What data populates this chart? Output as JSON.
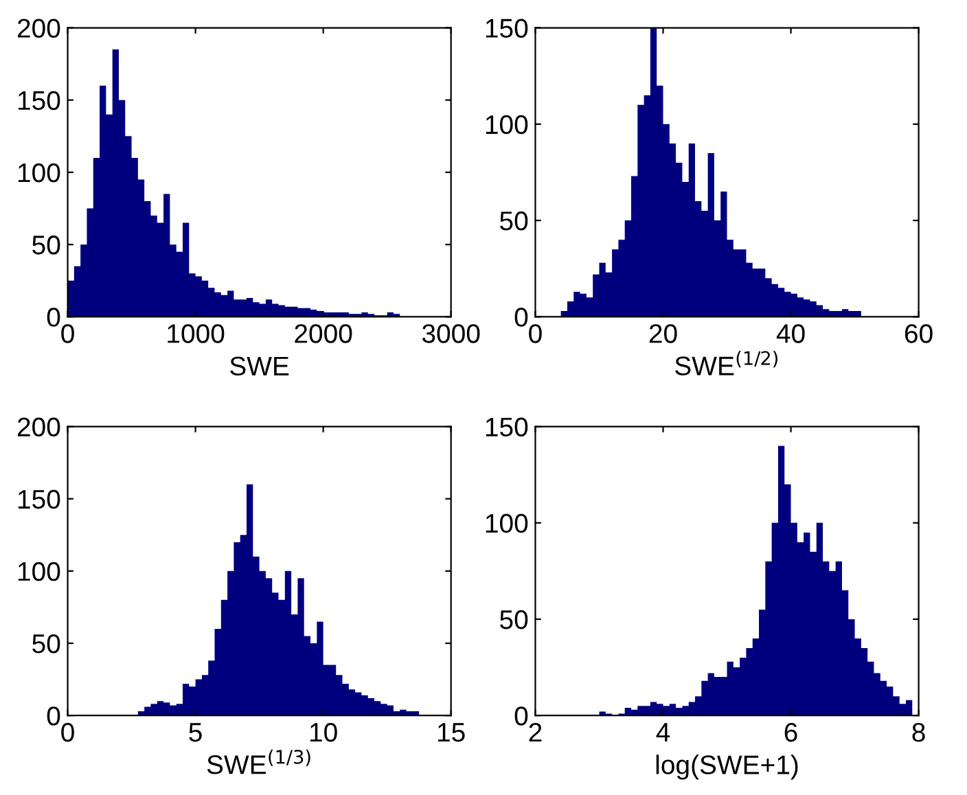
{
  "chart_data": [
    {
      "type": "histogram",
      "xlabel": "SWE",
      "color": "#00007f",
      "xlim": [
        0,
        3000
      ],
      "xticks": [
        0,
        1000,
        2000,
        3000
      ],
      "ylim": [
        0,
        200
      ],
      "yticks": [
        0,
        50,
        100,
        150,
        200
      ],
      "bins": [
        0,
        50,
        100,
        150,
        200,
        250,
        300,
        350,
        400,
        450,
        500,
        550,
        600,
        650,
        700,
        750,
        800,
        850,
        900,
        950,
        1000,
        1050,
        1100,
        1150,
        1200,
        1250,
        1300,
        1350,
        1400,
        1450,
        1500,
        1550,
        1600,
        1650,
        1700,
        1750,
        1800,
        1850,
        1900,
        1950,
        2000,
        2050,
        2100,
        2150,
        2200,
        2250,
        2300,
        2350,
        2400,
        2450,
        2500,
        2550,
        2600
      ],
      "values": [
        25,
        35,
        50,
        75,
        110,
        160,
        140,
        185,
        150,
        125,
        110,
        95,
        80,
        70,
        65,
        85,
        50,
        45,
        65,
        30,
        28,
        25,
        20,
        17,
        15,
        18,
        12,
        12,
        13,
        10,
        9,
        12,
        9,
        8,
        7,
        7,
        6,
        6,
        5,
        4,
        3,
        3,
        3,
        3,
        2,
        2,
        3,
        2,
        1,
        1,
        3,
        2
      ]
    },
    {
      "type": "histogram",
      "xlabel": "SWE$^{(1/2)}$",
      "color": "#00007f",
      "xlim": [
        0,
        60
      ],
      "xticks": [
        0,
        20,
        40,
        60
      ],
      "ylim": [
        0,
        150
      ],
      "yticks": [
        0,
        50,
        100,
        150
      ],
      "bins": [
        4,
        5,
        6,
        7,
        8,
        9,
        10,
        11,
        12,
        13,
        14,
        15,
        16,
        17,
        18,
        19,
        20,
        21,
        22,
        23,
        24,
        25,
        26,
        27,
        28,
        29,
        30,
        31,
        32,
        33,
        34,
        35,
        36,
        37,
        38,
        39,
        40,
        41,
        42,
        43,
        44,
        45,
        46,
        47,
        48,
        49,
        50,
        51
      ],
      "values": [
        3,
        8,
        13,
        12,
        10,
        22,
        28,
        23,
        35,
        40,
        50,
        73,
        110,
        115,
        150,
        120,
        100,
        90,
        80,
        70,
        90,
        60,
        55,
        85,
        50,
        65,
        40,
        35,
        35,
        28,
        25,
        25,
        20,
        17,
        15,
        13,
        12,
        10,
        9,
        8,
        6,
        4,
        3,
        3,
        4,
        3,
        3
      ]
    },
    {
      "type": "histogram",
      "xlabel": "SWE$^{(1/3)}$",
      "color": "#00007f",
      "xlim": [
        0,
        15
      ],
      "xticks": [
        0,
        5,
        10,
        15
      ],
      "ylim": [
        0,
        200
      ],
      "yticks": [
        0,
        50,
        100,
        150,
        200
      ],
      "bins": [
        2.75,
        3.0,
        3.25,
        3.5,
        3.75,
        4.0,
        4.25,
        4.5,
        4.75,
        5.0,
        5.25,
        5.5,
        5.75,
        6.0,
        6.25,
        6.5,
        6.75,
        7.0,
        7.25,
        7.5,
        7.75,
        8.0,
        8.25,
        8.5,
        8.75,
        9.0,
        9.25,
        9.5,
        9.75,
        10.0,
        10.25,
        10.5,
        10.75,
        11.0,
        11.25,
        11.5,
        11.75,
        12.0,
        12.25,
        12.5,
        12.75,
        13.0,
        13.25,
        13.5,
        13.75
      ],
      "values": [
        3,
        6,
        8,
        10,
        9,
        7,
        8,
        22,
        20,
        25,
        28,
        38,
        60,
        80,
        100,
        120,
        125,
        160,
        110,
        100,
        95,
        85,
        80,
        100,
        70,
        95,
        55,
        50,
        65,
        35,
        35,
        28,
        22,
        18,
        16,
        14,
        12,
        10,
        8,
        7,
        3,
        4,
        3,
        3
      ]
    },
    {
      "type": "histogram",
      "xlabel": "log(SWE+1)",
      "color": "#00007f",
      "xlim": [
        2,
        8
      ],
      "xticks": [
        2,
        4,
        6,
        8
      ],
      "ylim": [
        0,
        150
      ],
      "yticks": [
        0,
        50,
        100,
        150
      ],
      "bins": [
        3.0,
        3.1,
        3.2,
        3.3,
        3.4,
        3.5,
        3.6,
        3.7,
        3.8,
        3.9,
        4.0,
        4.1,
        4.2,
        4.3,
        4.4,
        4.5,
        4.6,
        4.7,
        4.8,
        4.9,
        5.0,
        5.1,
        5.2,
        5.3,
        5.4,
        5.5,
        5.6,
        5.7,
        5.8,
        5.9,
        6.0,
        6.1,
        6.2,
        6.3,
        6.4,
        6.5,
        6.6,
        6.7,
        6.8,
        6.9,
        7.0,
        7.1,
        7.2,
        7.3,
        7.4,
        7.5,
        7.6,
        7.7,
        7.8,
        7.9
      ],
      "values": [
        2,
        1,
        0,
        1,
        4,
        3,
        5,
        5,
        7,
        6,
        5,
        6,
        4,
        5,
        7,
        10,
        18,
        22,
        20,
        20,
        28,
        25,
        30,
        35,
        40,
        55,
        80,
        100,
        140,
        120,
        100,
        90,
        95,
        85,
        100,
        80,
        75,
        80,
        65,
        50,
        40,
        35,
        28,
        22,
        18,
        15,
        10,
        6,
        8
      ]
    }
  ]
}
